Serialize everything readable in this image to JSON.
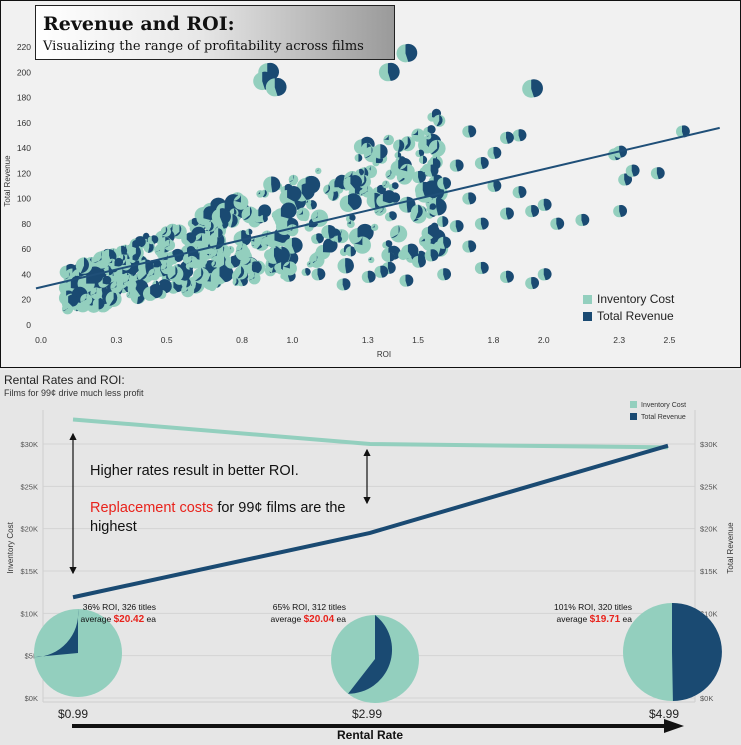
{
  "top_chart": {
    "title": "Revenue and ROI:",
    "subtitle": "Visualizing the range of profitability across films",
    "xlabel": "ROI",
    "ylabel": "Total Revenue",
    "x_ticks": [
      "0.0",
      "0.3",
      "0.5",
      "0.8",
      "1.0",
      "1.3",
      "1.5",
      "1.8",
      "2.0",
      "2.3",
      "2.5"
    ],
    "y_ticks": [
      "0",
      "20",
      "40",
      "60",
      "80",
      "100",
      "120",
      "140",
      "160",
      "180",
      "200",
      "220"
    ],
    "legend": [
      "Inventory Cost",
      "Total Revenue"
    ]
  },
  "bottom_chart": {
    "title": "Rental Rates and ROI:",
    "subtitle": "Films for 99¢ drive much less profit",
    "xlabel": "Rental Rate",
    "ylabel_left": "Inventory Cost",
    "ylabel_right": "Total Revenue",
    "y_ticks": [
      "$0K",
      "$5K",
      "$10K",
      "$15K",
      "$20K",
      "$25K",
      "$30K"
    ],
    "legend": [
      "Inventory Cost",
      "Total Revenue"
    ],
    "annotation_1": "Higher rates result in better ROI.",
    "annotation_2_red": "Replacement costs",
    "annotation_2_rest": " for 99¢ films are the highest",
    "pie_labels": [
      {
        "line1": "36% ROI, 326 titles",
        "avg_prefix": "average ",
        "avg_value": "$20.42",
        "avg_suffix": " ea"
      },
      {
        "line1": "65% ROI, 312 titles",
        "avg_prefix": "average ",
        "avg_value": "$20.04",
        "avg_suffix": " ea"
      },
      {
        "line1": "101% ROI, 320 titles",
        "avg_prefix": "average ",
        "avg_value": "$19.71",
        "avg_suffix": " ea"
      }
    ]
  },
  "colors": {
    "inventory_cost": "#93cfbe",
    "total_revenue": "#1a4a72",
    "trend_line": "#1f4f78",
    "annotation_red": "#e8231c"
  },
  "chart_data": [
    {
      "type": "scatter",
      "title": "Revenue and ROI:",
      "subtitle": "Visualizing the range of profitability across films",
      "xlabel": "ROI",
      "ylabel": "Total Revenue",
      "xlim": [
        -0.05,
        2.7
      ],
      "ylim": [
        -2,
        228
      ],
      "marks": "pie per film (Inventory Cost vs Total Revenue share)",
      "series": [
        {
          "name": "Total Revenue",
          "points": [
            [
              2.55,
              153
            ],
            [
              2.45,
              120
            ],
            [
              2.32,
              115
            ],
            [
              2.35,
              122
            ],
            [
              2.28,
              135
            ],
            [
              2.3,
              137
            ],
            [
              1.95,
              187
            ],
            [
              1.45,
              215
            ],
            [
              1.38,
              200
            ],
            [
              0.9,
              200
            ],
            [
              0.88,
              193
            ],
            [
              0.93,
              188
            ],
            [
              1.9,
              150
            ],
            [
              1.85,
              148
            ],
            [
              1.8,
              136
            ],
            [
              1.7,
              153
            ],
            [
              1.75,
              128
            ],
            [
              1.65,
              126
            ],
            [
              1.6,
              112
            ],
            [
              1.55,
              122
            ],
            [
              1.5,
              117
            ],
            [
              1.8,
              110
            ],
            [
              1.7,
              100
            ],
            [
              1.9,
              105
            ],
            [
              2.0,
              95
            ],
            [
              2.05,
              80
            ],
            [
              2.15,
              83
            ],
            [
              2.3,
              90
            ],
            [
              1.95,
              90
            ],
            [
              1.85,
              88
            ],
            [
              1.75,
              80
            ],
            [
              1.65,
              78
            ],
            [
              1.6,
              65
            ],
            [
              1.7,
              62
            ],
            [
              1.55,
              55
            ],
            [
              1.5,
              50
            ],
            [
              1.6,
              40
            ],
            [
              1.75,
              45
            ],
            [
              1.85,
              38
            ],
            [
              1.95,
              33
            ],
            [
              2.0,
              40
            ],
            [
              1.45,
              35
            ],
            [
              1.38,
              45
            ],
            [
              1.35,
              42
            ],
            [
              1.3,
              38
            ],
            [
              1.2,
              32
            ],
            [
              1.1,
              40
            ]
          ]
        },
        {
          "name": "Inventory Cost",
          "points": [
            [
              0.18,
              20
            ],
            [
              0.22,
              25
            ],
            [
              0.3,
              30
            ],
            [
              0.35,
              35
            ],
            [
              0.45,
              40
            ],
            [
              0.5,
              45
            ],
            [
              0.6,
              50
            ],
            [
              0.7,
              55
            ],
            [
              0.8,
              60
            ],
            [
              0.9,
              70
            ],
            [
              1.0,
              75
            ],
            [
              1.1,
              85
            ]
          ]
        }
      ],
      "trend_line": {
        "x": [
          0.0,
          2.7
        ],
        "y": [
          29,
          156
        ]
      },
      "legend_position": "bottom-right"
    },
    {
      "type": "line",
      "title": "Rental Rates and ROI:",
      "subtitle": "Films for 99¢ drive much less profit",
      "xlabel": "Rental Rate",
      "ylabel_left": "Inventory Cost",
      "ylabel_right": "Total Revenue",
      "categories": [
        "$0.99",
        "$2.99",
        "$4.99"
      ],
      "ylim": [
        0,
        34000
      ],
      "series": [
        {
          "name": "Inventory Cost",
          "values": [
            32900,
            30000,
            29600
          ]
        },
        {
          "name": "Total Revenue",
          "values": [
            11900,
            19500,
            29800
          ]
        }
      ],
      "pies": [
        {
          "category": "$0.99",
          "inventory_cost_share": 0.735,
          "total_revenue_share": 0.265
        },
        {
          "category": "$2.99",
          "inventory_cost_share": 0.605,
          "total_revenue_share": 0.395
        },
        {
          "category": "$4.99",
          "inventory_cost_share": 0.497,
          "total_revenue_share": 0.503
        }
      ],
      "legend_position": "top-right"
    }
  ]
}
